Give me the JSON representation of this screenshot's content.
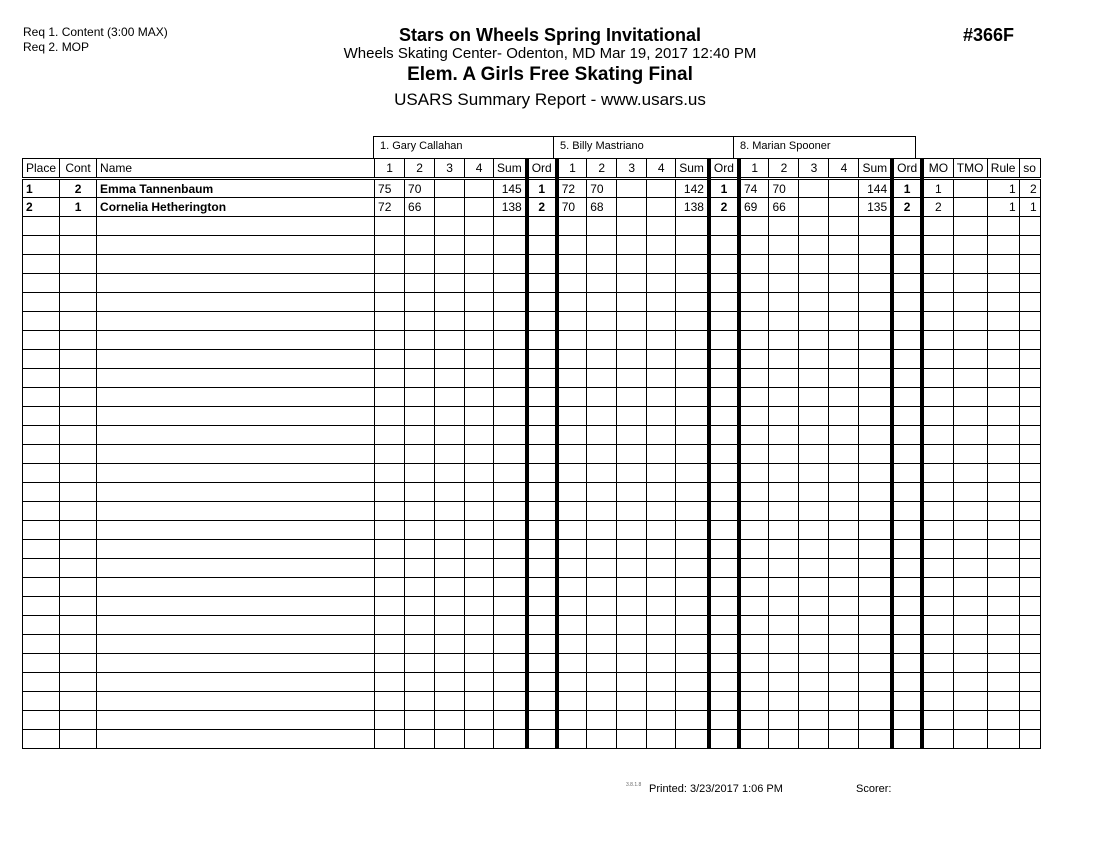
{
  "header": {
    "req1": "Req 1.  Content (3:00 MAX)",
    "req2": "Req 2.  MOP",
    "title": "Stars on Wheels Spring Invitational",
    "location": "Wheels Skating Center- Odenton, MD  Mar 19, 2017  12:40 PM",
    "event": "Elem. A Girls Free Skating Final",
    "report": "USARS Summary Report - www.usars.us",
    "event_number": "#366F"
  },
  "judges": [
    "1.  Gary Callahan",
    "5.  Billy Mastriano",
    "8.  Marian Spooner"
  ],
  "columns": {
    "place": "Place",
    "cont": "Cont",
    "name": "Name",
    "scores": [
      "1",
      "2",
      "3",
      "4"
    ],
    "sum": "Sum",
    "ord": "Ord",
    "mo": "MO",
    "tmo": "TMO",
    "rule": "Rule",
    "so": "so"
  },
  "rows": [
    {
      "place": "1",
      "cont": "2",
      "name": "Emma Tannenbaum",
      "judges": [
        {
          "s": [
            "75",
            "70",
            "",
            ""
          ],
          "sum": "145",
          "ord": "1"
        },
        {
          "s": [
            "72",
            "70",
            "",
            ""
          ],
          "sum": "142",
          "ord": "1"
        },
        {
          "s": [
            "74",
            "70",
            "",
            ""
          ],
          "sum": "144",
          "ord": "1"
        }
      ],
      "mo": "1",
      "tmo": "",
      "rule": "1",
      "so": "2"
    },
    {
      "place": "2",
      "cont": "1",
      "name": "Cornelia Hetherington",
      "judges": [
        {
          "s": [
            "72",
            "66",
            "",
            ""
          ],
          "sum": "138",
          "ord": "2"
        },
        {
          "s": [
            "70",
            "68",
            "",
            ""
          ],
          "sum": "138",
          "ord": "2"
        },
        {
          "s": [
            "69",
            "66",
            "",
            ""
          ],
          "sum": "135",
          "ord": "2"
        }
      ],
      "mo": "2",
      "tmo": "",
      "rule": "1",
      "so": "1"
    }
  ],
  "empty_rows": 28,
  "footer": {
    "version": "3.8.1.8",
    "printed": "Printed:  3/23/2017  1:06 PM",
    "scorer": "Scorer:"
  }
}
